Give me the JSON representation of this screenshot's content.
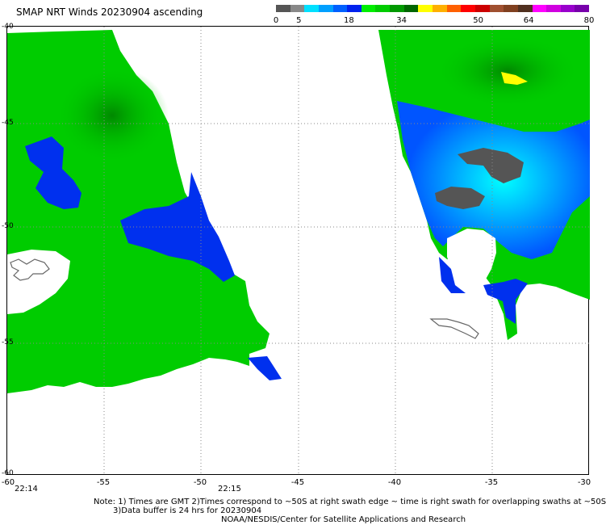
{
  "header": {
    "title": "SMAP NRT Winds 20230904 ascending"
  },
  "colorbar": {
    "colors": [
      "#555555",
      "#888888",
      "#00e0ff",
      "#00a0ff",
      "#0060ff",
      "#0022ee",
      "#00ee00",
      "#00cc00",
      "#009900",
      "#006600",
      "#ffff00",
      "#ffb000",
      "#ff6000",
      "#ff0000",
      "#cc0000",
      "#a05030",
      "#804020",
      "#503020",
      "#ff00ff",
      "#d000e0",
      "#9900cc",
      "#7700aa"
    ],
    "labels": [
      {
        "text": "0",
        "value": 0
      },
      {
        "text": "5",
        "value": 5
      },
      {
        "text": "18",
        "value": 18
      },
      {
        "text": "34",
        "value": 34
      },
      {
        "text": "50",
        "value": 50
      },
      {
        "text": "64",
        "value": 64
      },
      {
        "text": "80",
        "value": 80
      }
    ],
    "label_positions_value_to_fraction": [
      {
        "value": 0,
        "fraction": 0.0
      },
      {
        "value": 5,
        "fraction": 0.073
      },
      {
        "value": 18,
        "fraction": 0.233
      },
      {
        "value": 34,
        "fraction": 0.401
      },
      {
        "value": 50,
        "fraction": 0.646
      },
      {
        "value": 64,
        "fraction": 0.807
      },
      {
        "value": 80,
        "fraction": 1.0
      }
    ]
  },
  "axes": {
    "x_ticks": [
      "-60",
      "-55",
      "-50",
      "-45",
      "-40",
      "-35",
      "-30"
    ],
    "y_ticks": [
      "-40",
      "-45",
      "-50",
      "-55",
      "-60"
    ]
  },
  "times": [
    "22:14",
    "22:15"
  ],
  "notes": {
    "line1": "Note: 1) Times are GMT 2)Times correspond to ~50S at right swath edge ~ time is right swath for overlapping swaths at ~50S",
    "line2": "3)Data buffer is 24 hrs for 20230904",
    "line3": "NOAA/NESDIS/Center for Satellite Applications and Research"
  }
}
